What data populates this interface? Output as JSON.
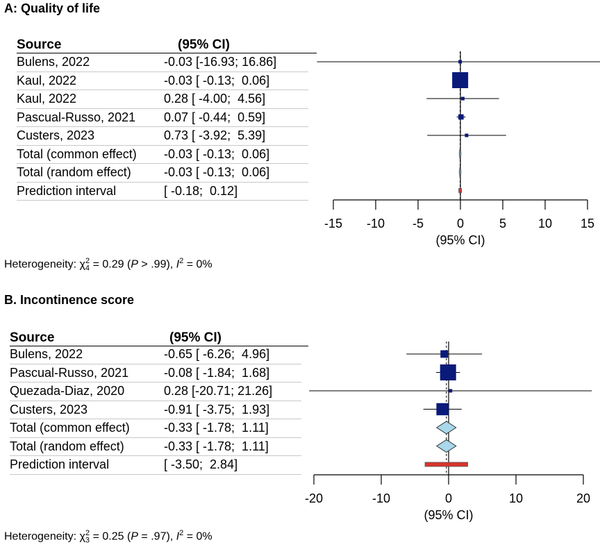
{
  "panels": [
    {
      "title": "A: Quality of life",
      "header": {
        "source": "Source",
        "ci": "(95% CI)"
      },
      "rows": [
        {
          "source": "Bulens, 2022",
          "ci": "-0.03 [-16.93; 16.86]"
        },
        {
          "source": "Kaul, 2022",
          "ci": "-0.03 [ -0.13;  0.06]"
        },
        {
          "source": "Kaul, 2022",
          "ci": "0.28 [ -4.00;  4.56]"
        },
        {
          "source": "Pascual-Russo, 2021",
          "ci": "0.07 [ -0.44;  0.59]"
        },
        {
          "source": "Custers, 2023",
          "ci": "0.73 [ -3.92;  5.39]"
        },
        {
          "source": "Total (common effect)",
          "ci": "-0.03 [ -0.13;  0.06]"
        },
        {
          "source": "Total (random effect)",
          "ci": "-0.03 [ -0.13;  0.06]"
        },
        {
          "source": "Prediction interval",
          "ci": "[ -0.18;  0.12]"
        }
      ],
      "heterogeneity": {
        "prefix": "Heterogeneity: χ",
        "sub": "4",
        "sup": "2",
        "stat": " = 0.29 (",
        "p": "P",
        "p_rest": " > .99), ",
        "i": "I",
        "i_sup": "2",
        "i_rest": " = 0%"
      }
    },
    {
      "title": "B. Incontinence score",
      "header": {
        "source": "Source",
        "ci": "(95% CI)"
      },
      "rows": [
        {
          "source": "Bulens, 2022",
          "ci": "-0.65 [ -6.26;  4.96]"
        },
        {
          "source": "Pascual-Russo, 2021",
          "ci": "-0.08 [ -1.84;  1.68]"
        },
        {
          "source": "Quezada-Diaz, 2020",
          "ci": "0.28 [-20.71; 21.26]"
        },
        {
          "source": "Custers, 2023",
          "ci": "-0.91 [ -3.75;  1.93]"
        },
        {
          "source": "Total (common effect)",
          "ci": "-0.33 [ -1.78;  1.11]"
        },
        {
          "source": "Total (random effect)",
          "ci": "-0.33 [ -1.78;  1.11]"
        },
        {
          "source": "Prediction interval",
          "ci": "[ -3.50;  2.84]"
        }
      ],
      "heterogeneity": {
        "prefix": "Heterogeneity: χ",
        "sub": "3",
        "sup": "2",
        "stat": " = 0.25 (",
        "p": "P",
        "p_rest": " = .97), ",
        "i": "I",
        "i_sup": "2",
        "i_rest": " = 0%"
      }
    }
  ],
  "colors": {
    "study": "#0a1a7a",
    "pooled": "#a8d8ea",
    "prediction": "#d9342b"
  },
  "chart_data": [
    {
      "type": "forest",
      "xlabel": "(95% CI)",
      "xlim": [
        -15,
        15
      ],
      "ticks": [
        -15,
        -10,
        -5,
        0,
        5,
        10,
        15
      ],
      "studies": [
        {
          "name": "Bulens, 2022",
          "est": -0.03,
          "lo": -16.93,
          "hi": 16.86,
          "size": 0.1
        },
        {
          "name": "Kaul, 2022",
          "est": -0.03,
          "lo": -0.13,
          "hi": 0.06,
          "size": 1.0
        },
        {
          "name": "Kaul, 2022",
          "est": 0.28,
          "lo": -4.0,
          "hi": 4.56,
          "size": 0.12
        },
        {
          "name": "Pascual-Russo, 2021",
          "est": 0.07,
          "lo": -0.44,
          "hi": 0.59,
          "size": 0.3
        },
        {
          "name": "Custers, 2023",
          "est": 0.73,
          "lo": -3.92,
          "hi": 5.39,
          "size": 0.12
        }
      ],
      "pooled": [
        {
          "name": "Total (common effect)",
          "est": -0.03,
          "lo": -0.13,
          "hi": 0.06
        },
        {
          "name": "Total (random effect)",
          "est": -0.03,
          "lo": -0.13,
          "hi": 0.06
        }
      ],
      "prediction": {
        "lo": -0.18,
        "hi": 0.12
      }
    },
    {
      "type": "forest",
      "xlabel": "(95% CI)",
      "xlim": [
        -20,
        20
      ],
      "ticks": [
        -20,
        -10,
        0,
        10,
        20
      ],
      "studies": [
        {
          "name": "Bulens, 2022",
          "est": -0.65,
          "lo": -6.26,
          "hi": 4.96,
          "size": 0.45
        },
        {
          "name": "Pascual-Russo, 2021",
          "est": -0.08,
          "lo": -1.84,
          "hi": 1.68,
          "size": 1.0
        },
        {
          "name": "Quezada-Diaz, 2020",
          "est": 0.28,
          "lo": -20.71,
          "hi": 21.26,
          "size": 0.1
        },
        {
          "name": "Custers, 2023",
          "est": -0.91,
          "lo": -3.75,
          "hi": 1.93,
          "size": 0.75
        }
      ],
      "pooled": [
        {
          "name": "Total (common effect)",
          "est": -0.33,
          "lo": -1.78,
          "hi": 1.11
        },
        {
          "name": "Total (random effect)",
          "est": -0.33,
          "lo": -1.78,
          "hi": 1.11
        }
      ],
      "prediction": {
        "lo": -3.5,
        "hi": 2.84
      }
    }
  ]
}
